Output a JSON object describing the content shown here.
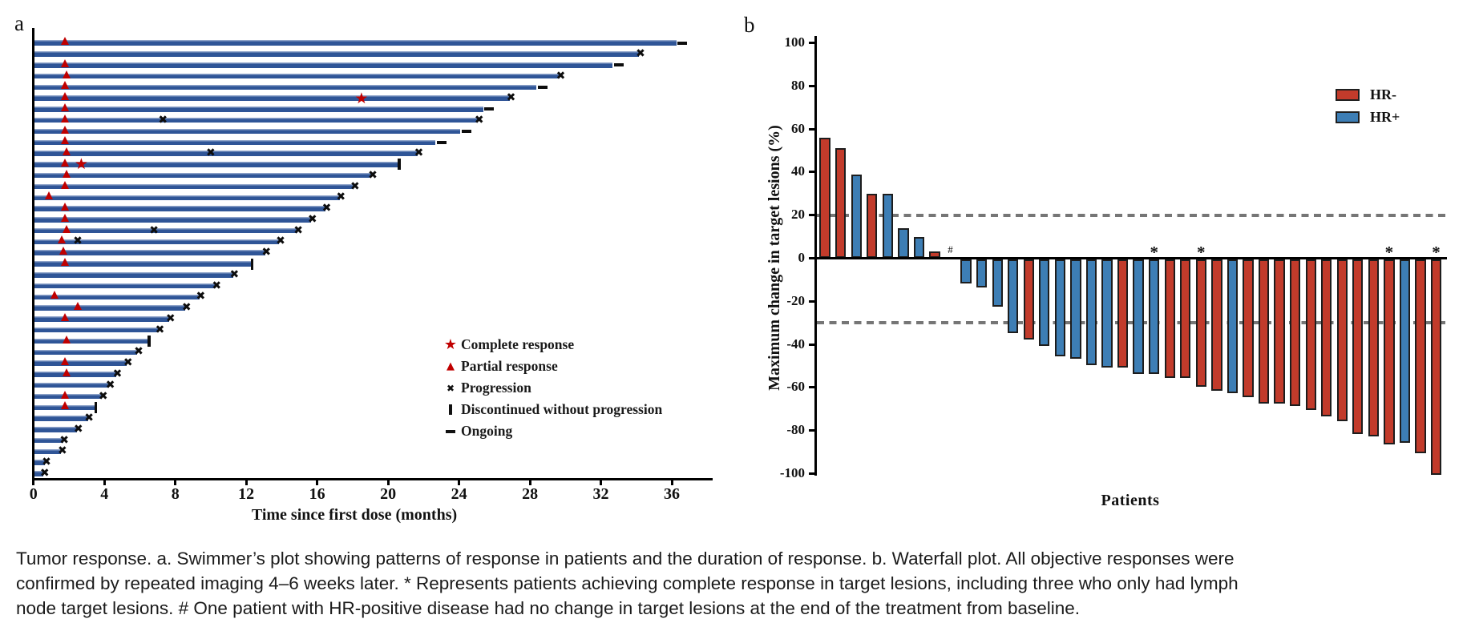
{
  "colors": {
    "swimmer_bar": "#2f5597",
    "swimmer_bar_highlight": "#8ea3c9",
    "response_marker_red": "#c00000",
    "progression_marker_black": "#0d0d0d",
    "hr_negative": "#c23b2b",
    "hr_positive": "#3d7eb5",
    "reference_dash_gray": "#767676",
    "axis_black": "#000000"
  },
  "chart_data": [
    {
      "type": "swimmer",
      "panel_label": "a",
      "xlabel": "Time since first dose (months)",
      "x_ticks": [
        0,
        4,
        8,
        12,
        16,
        20,
        24,
        28,
        32,
        36
      ],
      "xlim": [
        0,
        38.2
      ],
      "legend": [
        {
          "icon": "complete-response-star",
          "label": "Complete response"
        },
        {
          "icon": "partial-response-triangle",
          "label": "Partial response"
        },
        {
          "icon": "progression-x",
          "label": "Progression"
        },
        {
          "icon": "discontinued-bar",
          "label": "Discontinued without progression"
        },
        {
          "icon": "ongoing-dash",
          "label": "Ongoing"
        }
      ],
      "patients": [
        {
          "d": 36.2,
          "pr": 1.8,
          "end": "ongoing"
        },
        {
          "d": 34.1,
          "end": "progression"
        },
        {
          "d": 32.6,
          "pr": 1.8,
          "end": "ongoing"
        },
        {
          "d": 29.6,
          "pr": 1.9,
          "end": "progression"
        },
        {
          "d": 28.3,
          "pr": 1.8,
          "end": "ongoing"
        },
        {
          "d": 26.8,
          "pr": 1.8,
          "cr": 18.5,
          "end": "progression"
        },
        {
          "d": 25.3,
          "pr": 1.8,
          "end": "ongoing"
        },
        {
          "d": 25.0,
          "pr": 1.8,
          "px": [
            7.3
          ],
          "end": "progression"
        },
        {
          "d": 24.0,
          "pr": 1.8,
          "end": "ongoing"
        },
        {
          "d": 22.6,
          "pr": 1.8,
          "end": "ongoing"
        },
        {
          "d": 21.6,
          "pr": 1.9,
          "px": [
            10.0
          ],
          "end": "progression"
        },
        {
          "d": 20.5,
          "pr": 1.8,
          "cr": 2.7,
          "end": "discontinued"
        },
        {
          "d": 19.0,
          "pr": 1.9,
          "end": "progression"
        },
        {
          "d": 18.0,
          "pr": 1.8,
          "end": "progression"
        },
        {
          "d": 17.2,
          "pr": 0.9,
          "end": "progression"
        },
        {
          "d": 16.4,
          "pr": 1.8,
          "end": "progression"
        },
        {
          "d": 15.6,
          "pr": 1.8,
          "end": "progression"
        },
        {
          "d": 14.8,
          "pr": 1.9,
          "px": [
            6.8
          ],
          "end": "progression"
        },
        {
          "d": 13.8,
          "pr": 1.6,
          "px": [
            2.5
          ],
          "end": "progression"
        },
        {
          "d": 13.0,
          "pr": 1.7,
          "end": "progression"
        },
        {
          "d": 12.2,
          "pr": 1.8,
          "end": "discontinued"
        },
        {
          "d": 11.2,
          "end": "progression"
        },
        {
          "d": 10.2,
          "end": "progression"
        },
        {
          "d": 9.3,
          "pr": 1.2,
          "end": "progression"
        },
        {
          "d": 8.5,
          "pr": 2.5,
          "end": "progression"
        },
        {
          "d": 7.6,
          "pr": 1.8,
          "end": "progression"
        },
        {
          "d": 7.0,
          "end": "progression"
        },
        {
          "d": 6.4,
          "pr": 1.9,
          "end": "discontinued"
        },
        {
          "d": 5.8,
          "end": "progression"
        },
        {
          "d": 5.2,
          "pr": 1.8,
          "end": "progression"
        },
        {
          "d": 4.6,
          "pr": 1.9,
          "end": "progression"
        },
        {
          "d": 4.2,
          "end": "progression"
        },
        {
          "d": 3.8,
          "pr": 1.8,
          "end": "progression"
        },
        {
          "d": 3.4,
          "pr": 1.8,
          "end": "discontinued"
        },
        {
          "d": 3.0,
          "end": "progression"
        },
        {
          "d": 2.4,
          "end": "progression"
        },
        {
          "d": 1.6,
          "end": "progression"
        },
        {
          "d": 1.5,
          "end": "progression"
        },
        {
          "d": 0.6,
          "end": "progression"
        },
        {
          "d": 0.5,
          "end": "progression"
        }
      ]
    },
    {
      "type": "waterfall",
      "panel_label": "b",
      "xlabel": "Patients",
      "ylabel": "Maximum change in target lesions (%)",
      "ylim": [
        -100,
        100
      ],
      "y_ticks": [
        100,
        80,
        60,
        40,
        20,
        0,
        -20,
        -40,
        -60,
        -80,
        -100
      ],
      "reference_lines": [
        20,
        -30
      ],
      "legend": [
        {
          "label": "HR-",
          "color_key": "hr_negative"
        },
        {
          "label": "HR+",
          "color_key": "hr_positive"
        }
      ],
      "annotations": {
        "no_change_symbol": "#",
        "complete_response_symbol": "*"
      },
      "patients": [
        {
          "change": 56,
          "hr": "HR-"
        },
        {
          "change": 51,
          "hr": "HR-"
        },
        {
          "change": 39,
          "hr": "HR+"
        },
        {
          "change": 30,
          "hr": "HR-"
        },
        {
          "change": 30,
          "hr": "HR+"
        },
        {
          "change": 14,
          "hr": "HR+"
        },
        {
          "change": 10,
          "hr": "HR+"
        },
        {
          "change": 3,
          "hr": "HR-"
        },
        {
          "change": 0,
          "hr": "HR+",
          "no_change_mark": true
        },
        {
          "change": -11,
          "hr": "HR+"
        },
        {
          "change": -13,
          "hr": "HR+"
        },
        {
          "change": -22,
          "hr": "HR+"
        },
        {
          "change": -34,
          "hr": "HR+"
        },
        {
          "change": -37,
          "hr": "HR-"
        },
        {
          "change": -40,
          "hr": "HR+"
        },
        {
          "change": -45,
          "hr": "HR+"
        },
        {
          "change": -46,
          "hr": "HR+"
        },
        {
          "change": -49,
          "hr": "HR+"
        },
        {
          "change": -50,
          "hr": "HR+"
        },
        {
          "change": -50,
          "hr": "HR-"
        },
        {
          "change": -53,
          "hr": "HR+"
        },
        {
          "change": -53,
          "hr": "HR+",
          "complete_response_mark": true
        },
        {
          "change": -55,
          "hr": "HR-"
        },
        {
          "change": -55,
          "hr": "HR-"
        },
        {
          "change": -59,
          "hr": "HR-",
          "complete_response_mark": true
        },
        {
          "change": -61,
          "hr": "HR-"
        },
        {
          "change": -62,
          "hr": "HR+"
        },
        {
          "change": -64,
          "hr": "HR-"
        },
        {
          "change": -67,
          "hr": "HR-"
        },
        {
          "change": -67,
          "hr": "HR-"
        },
        {
          "change": -68,
          "hr": "HR-"
        },
        {
          "change": -70,
          "hr": "HR-"
        },
        {
          "change": -73,
          "hr": "HR-"
        },
        {
          "change": -75,
          "hr": "HR-"
        },
        {
          "change": -81,
          "hr": "HR-"
        },
        {
          "change": -82,
          "hr": "HR-"
        },
        {
          "change": -86,
          "hr": "HR-",
          "complete_response_mark": true
        },
        {
          "change": -85,
          "hr": "HR+"
        },
        {
          "change": -90,
          "hr": "HR-"
        },
        {
          "change": -100,
          "hr": "HR-",
          "complete_response_mark": true
        }
      ]
    }
  ],
  "caption": {
    "lines": [
      "Tumor response. a. Swimmer’s plot showing patterns of response in patients and the duration of response. b. Waterfall plot. All objective responses were",
      "confirmed by repeated imaging 4–6 weeks later. * Represents patients achieving complete response in target lesions, including three who only had lymph",
      "node target lesions. # One patient with HR-positive disease had no change in target lesions at the end of the treatment from baseline."
    ]
  }
}
